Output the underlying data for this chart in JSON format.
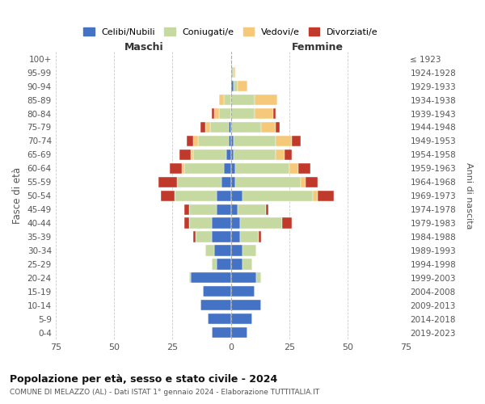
{
  "age_groups": [
    "0-4",
    "5-9",
    "10-14",
    "15-19",
    "20-24",
    "25-29",
    "30-34",
    "35-39",
    "40-44",
    "45-49",
    "50-54",
    "55-59",
    "60-64",
    "65-69",
    "70-74",
    "75-79",
    "80-84",
    "85-89",
    "90-94",
    "95-99",
    "100+"
  ],
  "birth_years": [
    "2019-2023",
    "2014-2018",
    "2009-2013",
    "2004-2008",
    "1999-2003",
    "1994-1998",
    "1989-1993",
    "1984-1988",
    "1979-1983",
    "1974-1978",
    "1969-1973",
    "1964-1968",
    "1959-1963",
    "1954-1958",
    "1949-1953",
    "1944-1948",
    "1939-1943",
    "1934-1938",
    "1929-1933",
    "1924-1928",
    "≤ 1923"
  ],
  "colors": {
    "celibi": "#4472c4",
    "coniugati": "#c5d9a0",
    "vedovi": "#f5c87a",
    "divorziati": "#c0392b"
  },
  "males": {
    "celibi": [
      8,
      10,
      13,
      12,
      17,
      6,
      7,
      8,
      8,
      6,
      6,
      4,
      3,
      2,
      1,
      1,
      0,
      0,
      0,
      0,
      0
    ],
    "coniugati": [
      0,
      0,
      0,
      0,
      1,
      2,
      4,
      7,
      10,
      12,
      18,
      19,
      17,
      14,
      13,
      8,
      5,
      3,
      0,
      0,
      0
    ],
    "vedovi": [
      0,
      0,
      0,
      0,
      0,
      0,
      0,
      0,
      0,
      0,
      0,
      0,
      1,
      1,
      2,
      2,
      2,
      2,
      0,
      0,
      0
    ],
    "divorziati": [
      0,
      0,
      0,
      0,
      0,
      0,
      0,
      1,
      2,
      2,
      6,
      8,
      5,
      5,
      3,
      2,
      1,
      0,
      0,
      0,
      0
    ]
  },
  "females": {
    "celibi": [
      7,
      9,
      13,
      10,
      11,
      5,
      5,
      4,
      4,
      3,
      5,
      2,
      2,
      1,
      1,
      0,
      0,
      0,
      1,
      0,
      0
    ],
    "coniugati": [
      0,
      0,
      0,
      0,
      2,
      4,
      6,
      8,
      18,
      12,
      30,
      28,
      23,
      18,
      18,
      13,
      10,
      10,
      2,
      1,
      0
    ],
    "vedovi": [
      0,
      0,
      0,
      0,
      0,
      0,
      0,
      0,
      0,
      0,
      2,
      2,
      4,
      4,
      7,
      6,
      8,
      10,
      4,
      1,
      0
    ],
    "divorziati": [
      0,
      0,
      0,
      0,
      0,
      0,
      0,
      1,
      4,
      1,
      7,
      5,
      5,
      3,
      4,
      2,
      1,
      0,
      0,
      0,
      0
    ]
  },
  "xlim": 75,
  "title": "Popolazione per età, sesso e stato civile - 2024",
  "subtitle": "COMUNE DI MELAZZO (AL) - Dati ISTAT 1° gennaio 2024 - Elaborazione TUTTITALIA.IT",
  "xlabel_left": "Maschi",
  "xlabel_right": "Femmine",
  "ylabel_left": "Fasce di età",
  "ylabel_right": "Anni di nascita",
  "legend_labels": [
    "Celibi/Nubili",
    "Coniugati/e",
    "Vedovi/e",
    "Divorziati/e"
  ],
  "background_color": "#ffffff",
  "grid_color": "#cccccc"
}
